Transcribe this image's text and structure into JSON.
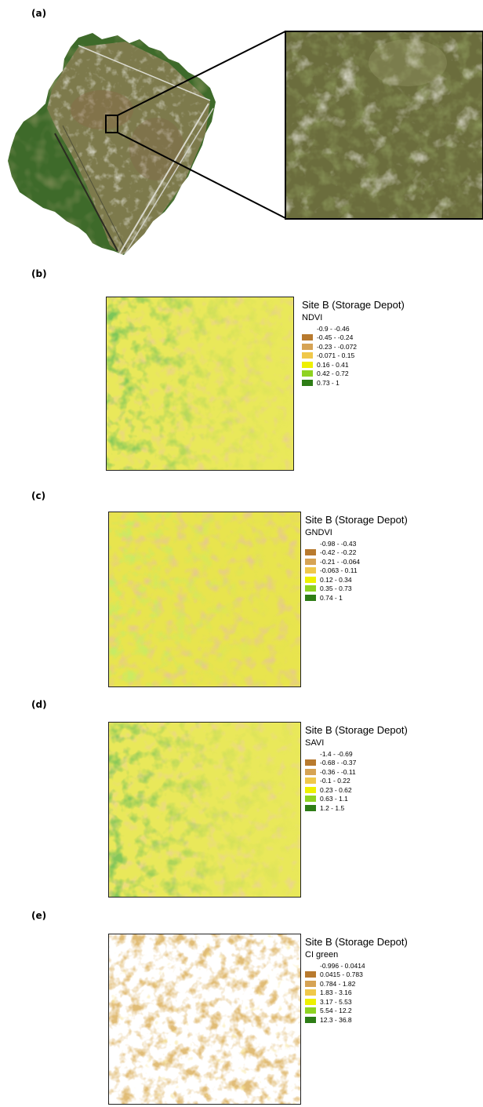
{
  "panels": {
    "a": {
      "label": "(a)"
    },
    "b": {
      "label": "(b)",
      "legend": {
        "site": "Site B (Storage Depot)",
        "index": "NDVI",
        "classes": [
          {
            "range": "-0.9 - -0.46",
            "color": ""
          },
          {
            "range": "-0.45 - -0.24",
            "color": "#b87a2e"
          },
          {
            "range": "-0.23 - -0.072",
            "color": "#d6a354"
          },
          {
            "range": "-0.071 - 0.15",
            "color": "#f0c84a"
          },
          {
            "range": "0.16 - 0.41",
            "color": "#eef000"
          },
          {
            "range": "0.42 - 0.72",
            "color": "#8fd321"
          },
          {
            "range": "0.73 - 1",
            "color": "#2e7d16"
          }
        ]
      }
    },
    "c": {
      "label": "(c)",
      "legend": {
        "site": "Site B (Storage Depot)",
        "index": "GNDVI",
        "classes": [
          {
            "range": "-0.98 - -0.43",
            "color": ""
          },
          {
            "range": "-0.42 - -0.22",
            "color": "#b87a2e"
          },
          {
            "range": "-0.21 - -0.064",
            "color": "#d6a354"
          },
          {
            "range": "-0.063 - 0.11",
            "color": "#f0c84a"
          },
          {
            "range": "0.12 - 0.34",
            "color": "#eef000"
          },
          {
            "range": "0.35 - 0.73",
            "color": "#8fd321"
          },
          {
            "range": "0.74 - 1",
            "color": "#2e7d16"
          }
        ]
      }
    },
    "d": {
      "label": "(d)",
      "legend": {
        "site": "Site B (Storage Depot)",
        "index": "SAVI",
        "classes": [
          {
            "range": "-1.4 - -0.69",
            "color": ""
          },
          {
            "range": "-0.68 - -0.37",
            "color": "#b87a2e"
          },
          {
            "range": "-0.36 - -0.11",
            "color": "#d6a354"
          },
          {
            "range": "-0.1 - 0.22",
            "color": "#f0c84a"
          },
          {
            "range": "0.23 - 0.62",
            "color": "#eef000"
          },
          {
            "range": "0.63 - 1.1",
            "color": "#8fd321"
          },
          {
            "range": "1.2 - 1.5",
            "color": "#2e7d16"
          }
        ]
      }
    },
    "e": {
      "label": "(e)",
      "legend": {
        "site": "Site B (Storage Depot)",
        "index": "CI green",
        "classes": [
          {
            "range": "-0.996 - 0.0414",
            "color": ""
          },
          {
            "range": "0.0415 - 0.783",
            "color": "#b87a2e"
          },
          {
            "range": "0.784 - 1.82",
            "color": "#d6a354"
          },
          {
            "range": "1.83 - 3.16",
            "color": "#f0c84a"
          },
          {
            "range": "3.17 - 5.53",
            "color": "#eef000"
          },
          {
            "range": "5.54 - 12.2",
            "color": "#8fd321"
          },
          {
            "range": "12.3 - 36.8",
            "color": "#2e7d16"
          }
        ]
      }
    }
  }
}
